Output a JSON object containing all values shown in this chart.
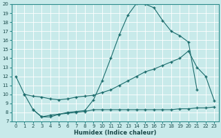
{
  "xlabel": "Humidex (Indice chaleur)",
  "background_color": "#c8eaea",
  "grid_color": "#b8d8d8",
  "line_color": "#1a6b6b",
  "xlim": [
    -0.5,
    23.5
  ],
  "ylim": [
    7,
    20
  ],
  "xticks": [
    0,
    1,
    2,
    3,
    4,
    5,
    6,
    7,
    8,
    9,
    10,
    11,
    12,
    13,
    14,
    15,
    16,
    17,
    18,
    19,
    20,
    21,
    22,
    23
  ],
  "yticks": [
    7,
    8,
    9,
    10,
    11,
    12,
    13,
    14,
    15,
    16,
    17,
    18,
    19,
    20
  ],
  "line1_x": [
    0,
    1,
    2,
    3,
    4,
    5,
    6,
    7,
    8,
    9,
    10,
    11,
    12,
    13,
    14,
    15,
    16,
    17,
    18,
    19,
    20,
    21
  ],
  "line1_y": [
    12.0,
    10.0,
    8.3,
    7.5,
    7.5,
    7.8,
    8.0,
    8.1,
    8.2,
    9.4,
    11.5,
    14.0,
    16.6,
    18.8,
    20.1,
    20.0,
    19.6,
    18.2,
    17.0,
    16.5,
    15.8,
    10.5
  ],
  "line2_x": [
    1,
    2,
    3,
    4,
    5,
    6,
    7,
    8,
    9,
    10,
    11,
    12,
    13,
    14,
    15,
    16,
    17,
    18,
    19,
    20,
    21,
    22,
    23
  ],
  "line2_y": [
    10.0,
    9.8,
    9.7,
    9.5,
    9.4,
    9.5,
    9.7,
    9.8,
    9.9,
    10.2,
    10.5,
    11.0,
    11.5,
    12.0,
    12.5,
    12.8,
    13.2,
    13.6,
    14.0,
    14.8,
    13.0,
    12.0,
    9.3
  ],
  "line3_x": [
    2,
    3,
    4,
    5,
    6,
    7,
    8,
    9,
    10,
    11,
    12,
    13,
    14,
    15,
    16,
    17,
    18,
    19,
    20,
    21,
    22,
    23
  ],
  "line3_y": [
    8.3,
    7.5,
    7.7,
    7.8,
    7.9,
    8.0,
    8.1,
    8.3,
    8.3,
    8.3,
    8.3,
    8.3,
    8.3,
    8.3,
    8.3,
    8.3,
    8.3,
    8.4,
    8.4,
    8.5,
    8.5,
    8.6
  ]
}
